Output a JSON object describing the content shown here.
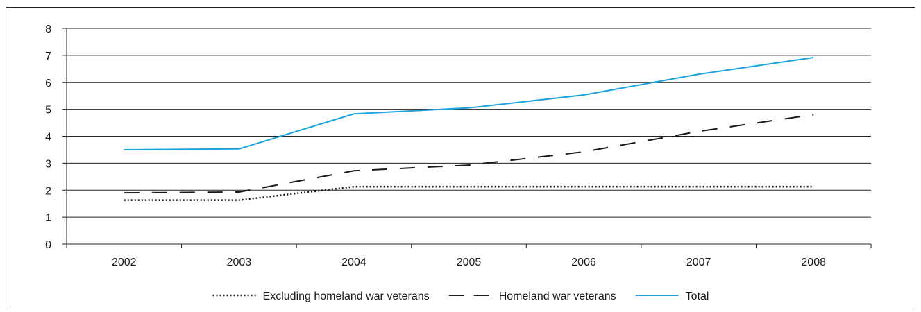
{
  "chart_data": {
    "type": "line",
    "categories": [
      "2002",
      "2003",
      "2004",
      "2005",
      "2006",
      "2007",
      "2008"
    ],
    "ylim": [
      0,
      8
    ],
    "yticks": [
      0,
      1,
      2,
      3,
      4,
      5,
      6,
      7,
      8
    ],
    "grid": true,
    "legend_position": "bottom",
    "series": [
      {
        "name": "Excluding homeland war veterans",
        "style": "dotted",
        "color": "#1a1a1a",
        "values": [
          1.63,
          1.63,
          2.13,
          2.13,
          2.13,
          2.13,
          2.13
        ]
      },
      {
        "name": "Homeland war veterans",
        "style": "dashed",
        "color": "#1a1a1a",
        "values": [
          1.9,
          1.93,
          2.72,
          2.93,
          3.42,
          4.18,
          4.8
        ]
      },
      {
        "name": "Total",
        "style": "solid",
        "color": "#1aa3df",
        "values": [
          3.5,
          3.53,
          4.83,
          5.05,
          5.53,
          6.3,
          6.92
        ]
      }
    ]
  }
}
